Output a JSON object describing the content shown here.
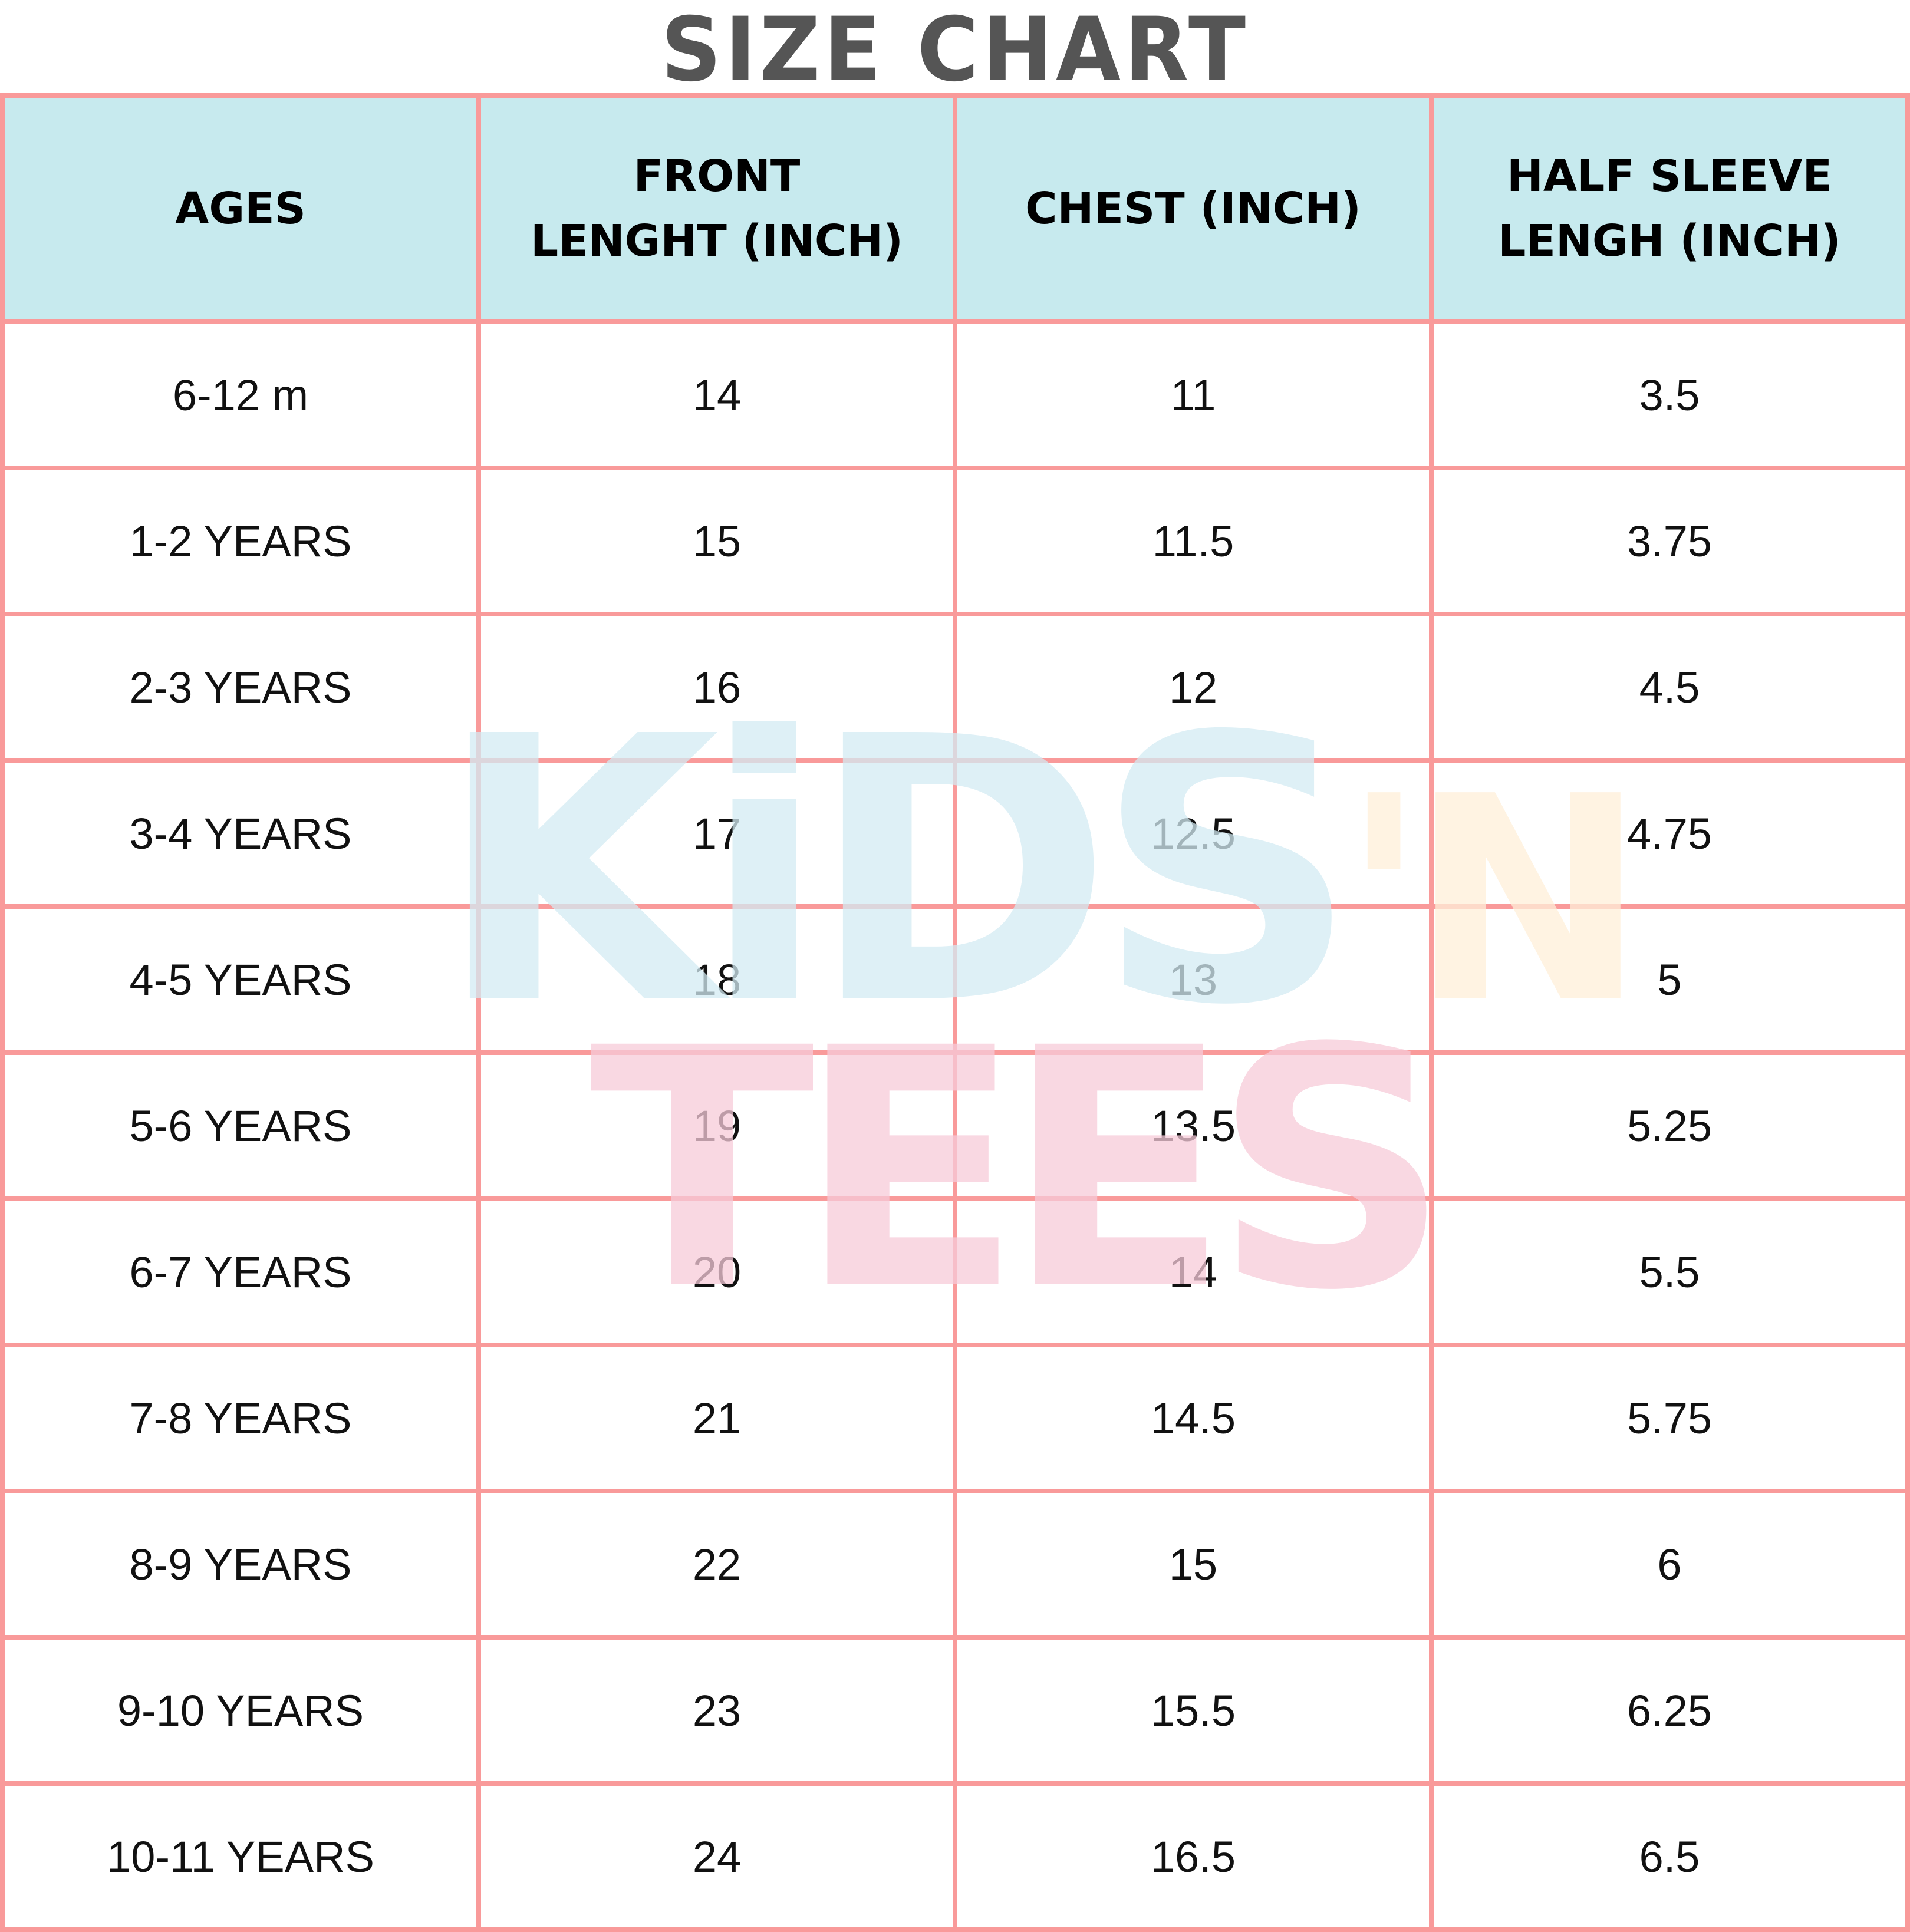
{
  "title": "SIZE CHART",
  "watermark": {
    "line1": "KiDS",
    "apostrophe_n": "'N",
    "line2": "TEES"
  },
  "colors": {
    "border": "#f99a9a",
    "header_bg": "#c7eaee",
    "title": "#555555",
    "wm_blue": "#d3ebf3",
    "wm_pink": "#f7cbd9",
    "wm_yellow": "#fff0d9"
  },
  "headers": [
    "AGES",
    "FRONT LENGHT (INCH)",
    "CHEST (INCH)",
    "HALF SLEEVE LENGH (INCH)"
  ],
  "rows": [
    [
      "6-12 m",
      "14",
      "11",
      "3.5"
    ],
    [
      "1-2 YEARS",
      "15",
      "11.5",
      "3.75"
    ],
    [
      "2-3 YEARS",
      "16",
      "12",
      "4.5"
    ],
    [
      "3-4 YEARS",
      "17",
      "12.5",
      "4.75"
    ],
    [
      "4-5 YEARS",
      "18",
      "13",
      "5"
    ],
    [
      "5-6 YEARS",
      "19",
      "13.5",
      "5.25"
    ],
    [
      "6-7 YEARS",
      "20",
      "14",
      "5.5"
    ],
    [
      "7-8 YEARS",
      "21",
      "14.5",
      "5.75"
    ],
    [
      "8-9 YEARS",
      "22",
      "15",
      "6"
    ],
    [
      "9-10 YEARS",
      "23",
      "15.5",
      "6.25"
    ],
    [
      "10-11 YEARS",
      "24",
      "16.5",
      "6.5"
    ]
  ]
}
